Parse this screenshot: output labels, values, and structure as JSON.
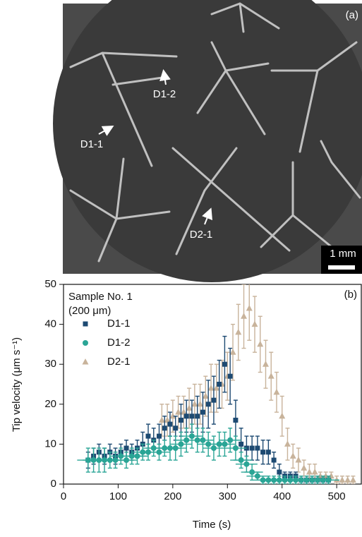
{
  "image": {
    "panel_label": "(a)",
    "labels": [
      "D1-2",
      "D1-1",
      "D2-1"
    ],
    "scale_bar": "1 mm"
  },
  "chart_data": {
    "type": "scatter",
    "panel_label": "(b)",
    "xlabel": "Time (s)",
    "ylabel": "Tip velocity (μm s⁻¹)",
    "legend_title": [
      "Sample No. 1",
      "(200 μm)"
    ],
    "legend": "upper left",
    "xlim": [
      0,
      545
    ],
    "ylim": [
      0,
      50
    ],
    "xticks": [
      0,
      100,
      200,
      300,
      400,
      500
    ],
    "yticks": [
      0,
      10,
      20,
      30,
      40,
      50
    ],
    "series": [
      {
        "name": "D1-1",
        "color": "#1d4a72",
        "marker": "square",
        "x": [
          45,
          55,
          65,
          75,
          85,
          95,
          105,
          115,
          125,
          135,
          145,
          155,
          165,
          175,
          185,
          195,
          205,
          215,
          225,
          235,
          245,
          255,
          265,
          275,
          285,
          295,
          305,
          315,
          325,
          335,
          345,
          355,
          365,
          375,
          385,
          395,
          405,
          415,
          425,
          435,
          445,
          455,
          465,
          475,
          485
        ],
        "values": [
          6,
          7,
          8,
          7,
          8,
          7,
          8,
          9,
          8,
          9,
          10,
          12,
          11,
          12,
          14,
          15,
          14,
          16,
          17,
          17,
          17,
          18,
          20,
          21,
          25,
          30,
          27,
          16,
          10,
          9,
          9,
          9,
          8,
          8,
          6,
          3,
          2,
          2,
          2,
          1,
          1,
          1,
          1,
          1,
          1
        ],
        "errors": [
          2,
          2,
          2,
          2,
          2,
          2,
          2,
          2,
          2,
          2,
          3,
          3,
          3,
          3,
          3,
          3,
          3,
          4,
          4,
          4,
          5,
          5,
          6,
          6,
          6,
          7,
          7,
          5,
          4,
          3,
          3,
          3,
          3,
          3,
          2,
          2,
          1,
          1,
          1,
          1,
          1,
          1,
          1,
          1,
          1
        ]
      },
      {
        "name": "D1-2",
        "color": "#2aa596",
        "marker": "circle",
        "xerror": 20,
        "x": [
          45,
          55,
          65,
          75,
          85,
          95,
          105,
          115,
          125,
          135,
          145,
          155,
          165,
          175,
          185,
          195,
          205,
          215,
          225,
          235,
          245,
          255,
          265,
          275,
          285,
          295,
          305,
          315,
          325,
          335,
          345,
          355,
          365,
          375,
          385,
          395,
          405,
          415,
          425,
          435,
          445,
          455,
          465,
          475,
          485
        ],
        "values": [
          6,
          6,
          6,
          6,
          6,
          6,
          7,
          6,
          7,
          7,
          8,
          8,
          9,
          8,
          9,
          9,
          9,
          10,
          11,
          12,
          11,
          11,
          10,
          9,
          10,
          10,
          11,
          9,
          6,
          5,
          3,
          2,
          1,
          1,
          1,
          1,
          1,
          1,
          1,
          1,
          1,
          1,
          1,
          1,
          1
        ],
        "errors": [
          3,
          3,
          3,
          3,
          2,
          2,
          2,
          2,
          2,
          2,
          2,
          2,
          2,
          2,
          2,
          3,
          3,
          3,
          3,
          3,
          3,
          3,
          3,
          3,
          3,
          3,
          3,
          3,
          2,
          2,
          2,
          1,
          1,
          1,
          1,
          1,
          1,
          1,
          1,
          1,
          1,
          1,
          1,
          1,
          1
        ]
      },
      {
        "name": "D2-1",
        "color": "#c8b39b",
        "marker": "triangle",
        "x": [
          180,
          190,
          200,
          210,
          220,
          230,
          240,
          250,
          260,
          270,
          280,
          290,
          300,
          310,
          320,
          330,
          340,
          350,
          360,
          370,
          380,
          390,
          400,
          410,
          420,
          430,
          440,
          450,
          460,
          470,
          480,
          490,
          500,
          510,
          520,
          530
        ],
        "values": [
          16,
          16,
          17,
          18,
          18,
          19,
          20,
          20,
          22,
          24,
          24,
          25,
          27,
          33,
          38,
          42,
          44,
          40,
          35,
          30,
          27,
          23,
          17,
          10,
          7,
          6,
          4,
          3,
          3,
          2,
          2,
          2,
          1,
          1,
          1,
          1
        ],
        "errors": [
          4,
          4,
          4,
          4,
          4,
          5,
          5,
          5,
          5,
          6,
          6,
          6,
          6,
          7,
          7,
          8,
          8,
          7,
          7,
          6,
          6,
          5,
          5,
          4,
          3,
          3,
          2,
          2,
          2,
          1,
          1,
          1,
          1,
          1,
          1,
          1
        ]
      }
    ]
  }
}
